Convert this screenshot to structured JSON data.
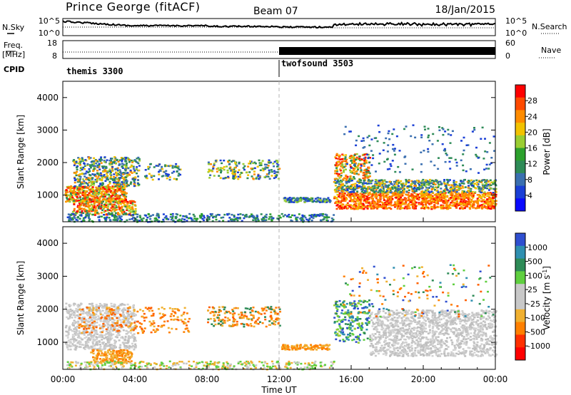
{
  "header": {
    "title": "Prince George (fitACF)",
    "beam": "Beam 07",
    "date": "18/Jan/2015"
  },
  "noise_panel": {
    "left_label": "N.Sky",
    "left_ticks": [
      "10^5",
      "10^0"
    ],
    "right_ticks": [
      "10^5",
      "10^0"
    ],
    "right_label": "N.Search"
  },
  "freq_panel": {
    "left_label_line1": "Freq.",
    "left_label_line2": "[MHz]",
    "left_ticks": [
      "18",
      "8"
    ],
    "right_ticks": [
      "60",
      "0"
    ],
    "right_label": "Nave"
  },
  "cpid_panel": {
    "label": "CPID",
    "segments": [
      {
        "name": "themis 3300",
        "start": "00:00",
        "end": "12:00"
      },
      {
        "name": "twofsound 3503",
        "start": "12:00",
        "end": "00:00"
      }
    ]
  },
  "chart_data": [
    {
      "type": "heatmap",
      "name": "power",
      "ylabel": "Slant Range [km]",
      "xlabel": "Time UT",
      "x_range_hours": [
        0,
        24
      ],
      "ylim": [
        180,
        4500
      ],
      "yticks": [
        1000,
        2000,
        3000,
        4000
      ],
      "colorbar": {
        "label": "Power [dB]",
        "ticks": [
          "28",
          "24",
          "20",
          "16",
          "12",
          "8",
          "4"
        ],
        "colors": [
          "#ff0000",
          "#ff4a00",
          "#ff8c00",
          "#f2c200",
          "#9acd32",
          "#2ca02c",
          "#2e8b57",
          "#3a6fb0",
          "#1a3fd6",
          "#0a0aff"
        ]
      }
    },
    {
      "type": "heatmap",
      "name": "velocity",
      "ylabel": "Slant Range [km]",
      "xlabel": "Time UT",
      "x_range_hours": [
        0,
        24
      ],
      "ylim": [
        180,
        4500
      ],
      "yticks": [
        1000,
        2000,
        3000,
        4000
      ],
      "colorbar": {
        "label": "Velocity [m s^-1]",
        "ticks": [
          "1000",
          "500",
          "100",
          "25",
          "-25",
          "-100",
          "-500",
          "-1000"
        ],
        "colors": [
          "#2f4fd0",
          "#2f8fb0",
          "#2e8b57",
          "#5fcf3f",
          "#c8c8c8",
          "#c8c8c8",
          "#f0b030",
          "#ff8000",
          "#ff3000",
          "#ff0000"
        ]
      }
    }
  ],
  "time_axis": {
    "ticks": [
      "00:00",
      "04:00",
      "08:00",
      "12:00",
      "16:00",
      "20:00",
      "00:00"
    ],
    "label": "Time UT"
  },
  "colors": {
    "axis": "#000000",
    "split_line": "#b4b4b4"
  }
}
